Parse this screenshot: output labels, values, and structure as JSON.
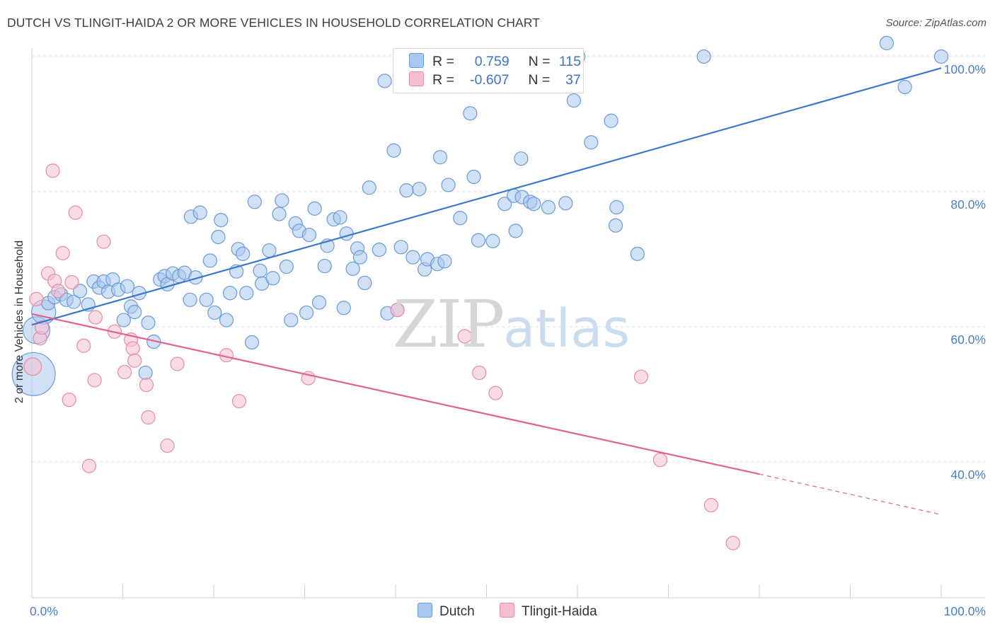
{
  "title": "DUTCH VS TLINGIT-HAIDA 2 OR MORE VEHICLES IN HOUSEHOLD CORRELATION CHART",
  "source": "Source: ZipAtlas.com",
  "watermark": {
    "zip": "ZIP",
    "atlas": "atlas"
  },
  "legend": {
    "rows": [
      {
        "r_label": "R =",
        "r_value": "0.759",
        "n_label": "N =",
        "n_value": "115",
        "color": "#a9c8ef",
        "stroke": "#6b9ad8"
      },
      {
        "r_label": "R =",
        "r_value": "-0.607",
        "n_label": "N =",
        "n_value": "37",
        "color": "#f6bfd0",
        "stroke": "#e68aa6"
      }
    ]
  },
  "bottom_legend": [
    {
      "label": "Dutch",
      "color": "#a9c8ef",
      "stroke": "#6b9ad8"
    },
    {
      "label": "Tlingit-Haida",
      "color": "#f6bfd0",
      "stroke": "#e68aa6"
    }
  ],
  "chart_data": {
    "type": "scatter",
    "title": "DUTCH VS TLINGIT-HAIDA 2 OR MORE VEHICLES IN HOUSEHOLD CORRELATION CHART",
    "xlabel": "",
    "ylabel": "2 or more Vehicles in Household",
    "xlim": [
      0,
      100
    ],
    "ylim": [
      20,
      102
    ],
    "x_tick_labels": [
      "0.0%",
      "100.0%"
    ],
    "y_ticks": [
      40,
      60,
      80,
      100
    ],
    "y_tick_labels": [
      "40.0%",
      "60.0%",
      "80.0%",
      "100.0%"
    ],
    "grid": "horizontal dashed",
    "legend_position": "top-center",
    "series": [
      {
        "name": "Dutch",
        "color": "#a9c8ef",
        "stroke": "#6b9ad8",
        "trend": {
          "x": [
            0,
            100
          ],
          "y": [
            60.3,
            98.3
          ],
          "color": "#3a78cf",
          "style": "solid"
        },
        "points": [
          [
            0.2,
            53,
            3.2
          ],
          [
            0.5,
            59.5,
            2
          ],
          [
            1.3,
            62.2,
            1.8
          ],
          [
            1.8,
            63.5,
            1
          ],
          [
            2.5,
            64.4,
            1
          ],
          [
            3.2,
            64.8,
            1
          ],
          [
            3.8,
            64.0,
            1
          ],
          [
            4.6,
            63.7,
            1
          ],
          [
            5.3,
            65.3,
            1
          ],
          [
            6.2,
            63.3,
            1
          ],
          [
            6.8,
            66.7,
            1
          ],
          [
            7.4,
            65.8,
            1
          ],
          [
            7.9,
            66.7,
            1
          ],
          [
            8.4,
            65.2,
            1
          ],
          [
            8.9,
            67.0,
            1
          ],
          [
            9.5,
            65.5,
            1
          ],
          [
            10.1,
            61.0,
            1
          ],
          [
            10.5,
            66.0,
            1
          ],
          [
            10.9,
            63.0,
            1
          ],
          [
            11.3,
            62.2,
            1
          ],
          [
            11.8,
            65.0,
            1
          ],
          [
            12.5,
            53.2,
            1
          ],
          [
            12.8,
            60.6,
            1
          ],
          [
            13.4,
            57.8,
            1
          ],
          [
            14.1,
            67.0,
            1
          ],
          [
            14.6,
            67.5,
            1
          ],
          [
            14.9,
            66.3,
            1
          ],
          [
            15.5,
            67.9,
            1
          ],
          [
            16.2,
            67.5,
            1
          ],
          [
            16.8,
            68.0,
            1
          ],
          [
            17.4,
            64.0,
            1
          ],
          [
            17.5,
            76.3,
            1
          ],
          [
            18.0,
            67.3,
            1
          ],
          [
            18.5,
            76.9,
            1
          ],
          [
            19.2,
            64.0,
            1
          ],
          [
            19.6,
            69.8,
            1
          ],
          [
            20.1,
            62.1,
            1
          ],
          [
            20.5,
            73.3,
            1
          ],
          [
            20.8,
            75.8,
            1
          ],
          [
            21.4,
            61.0,
            1
          ],
          [
            21.8,
            65.0,
            1
          ],
          [
            22.5,
            68.2,
            1
          ],
          [
            22.7,
            71.5,
            1
          ],
          [
            23.2,
            70.8,
            1
          ],
          [
            23.6,
            65.0,
            1
          ],
          [
            24.2,
            57.7,
            1
          ],
          [
            24.5,
            78.5,
            1
          ],
          [
            25.1,
            68.3,
            1
          ],
          [
            25.3,
            66.4,
            1
          ],
          [
            26.1,
            71.3,
            1
          ],
          [
            26.5,
            67.2,
            1
          ],
          [
            27.2,
            76.7,
            1
          ],
          [
            27.5,
            78.7,
            1
          ],
          [
            28.0,
            68.9,
            1
          ],
          [
            28.5,
            61.0,
            1
          ],
          [
            29.0,
            75.3,
            1
          ],
          [
            29.4,
            74.2,
            1
          ],
          [
            30.2,
            62.1,
            1
          ],
          [
            30.5,
            73.6,
            1
          ],
          [
            31.1,
            77.5,
            1
          ],
          [
            31.6,
            63.6,
            1
          ],
          [
            32.2,
            69.0,
            1
          ],
          [
            32.5,
            72.0,
            1
          ],
          [
            33.2,
            75.9,
            1
          ],
          [
            33.9,
            76.2,
            1
          ],
          [
            34.3,
            62.8,
            1
          ],
          [
            34.6,
            73.8,
            1
          ],
          [
            35.3,
            68.6,
            1
          ],
          [
            35.8,
            71.6,
            1
          ],
          [
            36.1,
            70.3,
            1
          ],
          [
            36.6,
            66.5,
            1
          ],
          [
            37.1,
            80.6,
            1
          ],
          [
            38.2,
            71.4,
            1
          ],
          [
            38.8,
            96.4,
            1
          ],
          [
            39.1,
            62.0,
            1
          ],
          [
            39.8,
            86.1,
            1
          ],
          [
            40.2,
            62.5,
            1
          ],
          [
            40.6,
            71.8,
            1
          ],
          [
            41.2,
            80.2,
            1
          ],
          [
            41.9,
            70.3,
            1
          ],
          [
            42.6,
            80.4,
            1
          ],
          [
            43.2,
            68.5,
            1
          ],
          [
            43.5,
            70.0,
            1
          ],
          [
            44.6,
            69.3,
            1
          ],
          [
            45.4,
            69.7,
            1
          ],
          [
            44.9,
            85.1,
            1
          ],
          [
            45.8,
            81.0,
            1
          ],
          [
            47.1,
            76.1,
            1
          ],
          [
            48.2,
            91.6,
            1
          ],
          [
            48.6,
            82.2,
            1
          ],
          [
            49.1,
            72.8,
            1
          ],
          [
            50.7,
            72.7,
            1
          ],
          [
            52.0,
            78.2,
            1
          ],
          [
            53.0,
            79.4,
            1
          ],
          [
            53.2,
            74.2,
            1
          ],
          [
            53.9,
            79.2,
            1
          ],
          [
            53.8,
            84.9,
            1
          ],
          [
            54.8,
            78.5,
            1
          ],
          [
            55.2,
            78.2,
            1
          ],
          [
            56.8,
            77.7,
            1
          ],
          [
            56.0,
            100.0,
            1
          ],
          [
            58.7,
            78.3,
            1
          ],
          [
            59.6,
            93.5,
            1
          ],
          [
            60.1,
            100.0,
            1
          ],
          [
            61.5,
            87.3,
            1
          ],
          [
            63.7,
            90.5,
            1
          ],
          [
            64.2,
            75.0,
            1
          ],
          [
            64.3,
            77.7,
            1
          ],
          [
            66.6,
            70.8,
            1
          ],
          [
            73.9,
            100.0,
            1
          ],
          [
            96.0,
            95.5,
            1
          ],
          [
            100.0,
            100.0,
            1
          ],
          [
            94.0,
            102.0,
            1
          ]
        ]
      },
      {
        "name": "Tlingit-Haida",
        "color": "#f6bfd0",
        "stroke": "#e68aa6",
        "trend": {
          "x": [
            0,
            80.0
          ],
          "y": [
            61.9,
            38.2
          ],
          "color": "#e2628c",
          "style": "solid"
        },
        "trend_extension": {
          "x": [
            80.0,
            100
          ],
          "y": [
            38.2,
            32.2
          ],
          "style": "dashed"
        },
        "points": [
          [
            0.1,
            54.1,
            1.3
          ],
          [
            0.5,
            64.1,
            1
          ],
          [
            0.9,
            58.3,
            1
          ],
          [
            1.1,
            59.9,
            1
          ],
          [
            1.8,
            67.9,
            1
          ],
          [
            2.3,
            83.1,
            1
          ],
          [
            2.5,
            66.8,
            1
          ],
          [
            2.9,
            65.3,
            1
          ],
          [
            3.4,
            70.9,
            1
          ],
          [
            4.1,
            49.2,
            1
          ],
          [
            4.4,
            66.6,
            1
          ],
          [
            4.8,
            76.9,
            1
          ],
          [
            5.7,
            57.2,
            1
          ],
          [
            6.3,
            39.4,
            1
          ],
          [
            6.9,
            52.1,
            1
          ],
          [
            7.0,
            61.4,
            1
          ],
          [
            7.9,
            72.6,
            1
          ],
          [
            9.1,
            59.3,
            1
          ],
          [
            10.2,
            53.3,
            1
          ],
          [
            10.9,
            58.1,
            1
          ],
          [
            11.1,
            56.8,
            1
          ],
          [
            11.3,
            55.0,
            1
          ],
          [
            12.6,
            51.4,
            1
          ],
          [
            12.8,
            46.6,
            1
          ],
          [
            14.9,
            42.4,
            1
          ],
          [
            16.0,
            54.5,
            1
          ],
          [
            21.4,
            55.8,
            1
          ],
          [
            22.8,
            49.0,
            1
          ],
          [
            30.4,
            52.4,
            1
          ],
          [
            40.2,
            62.5,
            1
          ],
          [
            47.6,
            58.6,
            1
          ],
          [
            49.2,
            53.2,
            1
          ],
          [
            51.0,
            50.2,
            1
          ],
          [
            67.0,
            52.6,
            1
          ],
          [
            69.1,
            40.3,
            1
          ],
          [
            74.7,
            33.6,
            1
          ],
          [
            77.1,
            28.0,
            1
          ]
        ]
      }
    ]
  }
}
